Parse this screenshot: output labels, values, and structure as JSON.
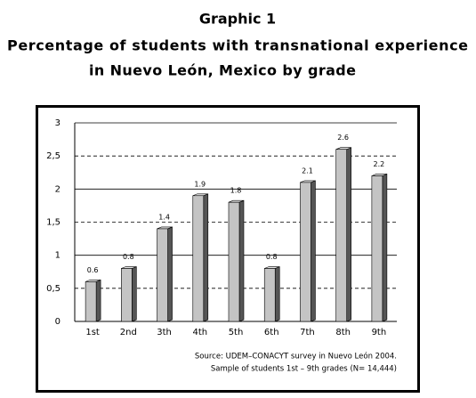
{
  "chart_data": {
    "type": "bar3d",
    "title": "Graphic 1",
    "subtitle": [
      "Percentage of students with transnational experience",
      "in Nuevo León, Mexico by grade"
    ],
    "categories": [
      "1st",
      "2nd",
      "3th",
      "4th",
      "5th",
      "6th",
      "7th",
      "8th",
      "9th"
    ],
    "values": [
      0.6,
      0.8,
      1.4,
      1.9,
      1.8,
      0.8,
      2.1,
      2.6,
      2.2
    ],
    "color": "#c4c4c4",
    "ylim": [
      0,
      3
    ],
    "yticks": [
      0,
      {
        "value": 0.5,
        "label": "0,5"
      },
      1,
      {
        "value": 1.5,
        "label": "1,5"
      },
      2,
      {
        "value": 2.5,
        "label": "2,5"
      },
      3
    ],
    "grid": true,
    "notes": [
      "Source: UDEM–CONACYT survey in Nuevo León 2004.",
      "Sample of students 1st – 9th grades (N= 14,444)"
    ]
  }
}
